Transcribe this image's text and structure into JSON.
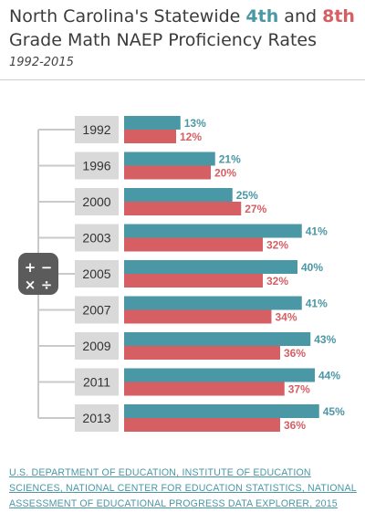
{
  "header": {
    "title_part1": "North Carolina's Statewide ",
    "title_4th": "4th",
    "title_and": " and ",
    "title_8th": "8th",
    "title_part2": " Grade Math NAEP Proficiency Rates",
    "subtitle": "1992-2015"
  },
  "icon": {
    "name": "calculator-icon",
    "symbols": [
      "+",
      "−",
      "×",
      "÷"
    ]
  },
  "colors": {
    "grade4": "#4a97a6",
    "grade8": "#d65f64",
    "year_box": "#d9d9d9",
    "connector": "#c9c9c9"
  },
  "chart_data": {
    "type": "bar",
    "orientation": "horizontal",
    "categories": [
      "1992",
      "1996",
      "2000",
      "2003",
      "2005",
      "2007",
      "2009",
      "2011",
      "2013"
    ],
    "series": [
      {
        "values": [
          13,
          21,
          25,
          41,
          40,
          41,
          43,
          44,
          45
        ]
      },
      {
        "values": [
          12,
          20,
          27,
          32,
          32,
          34,
          36,
          37,
          36
        ]
      }
    ],
    "value_suffix": "%",
    "xlim": [
      0,
      52
    ]
  },
  "source": {
    "text": "U.S. DEPARTMENT OF EDUCATION, INSTITUTE OF EDUCATION SCIENCES, NATIONAL CENTER FOR EDUCATION STATISTICS, NATIONAL ASSESSMENT OF EDUCATIONAL PROGRESS DATA EXPLORER, 2015"
  }
}
